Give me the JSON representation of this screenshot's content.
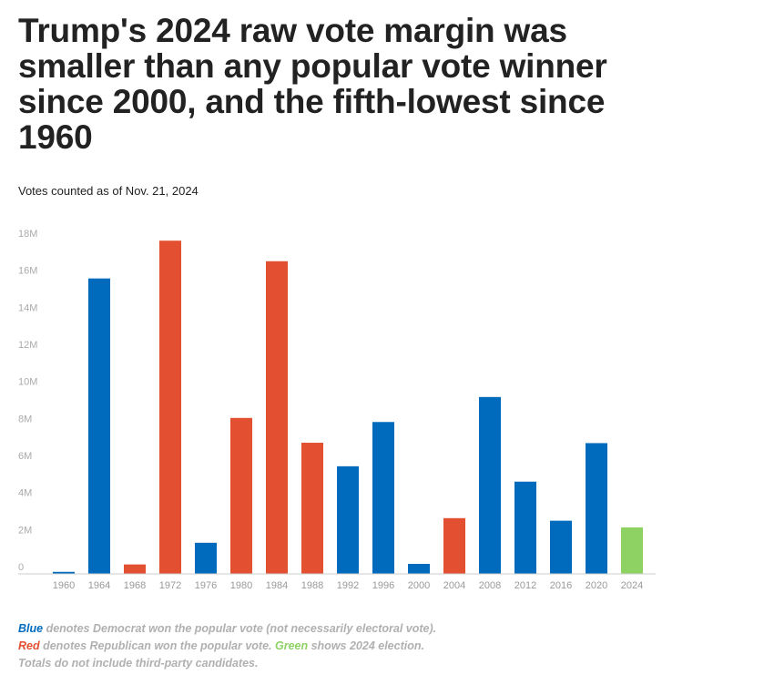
{
  "header": {
    "title": "Trump's 2024 raw vote margin was smaller than any popular vote winner since 2000, and the fifth-lowest since 1960",
    "subtitle": "Votes counted as of Nov. 21, 2024"
  },
  "notes": {
    "line1_key": "Blue",
    "line1_text": " denotes Democrat won the popular vote (not necessarily electoral vote).",
    "line2_key": "Red",
    "line2_text_a": " denotes Republican won the popular vote. ",
    "line2_key2": "Green",
    "line2_text_b": " shows 2024 election.",
    "line3_text": "Totals do not include third-party candidates."
  },
  "colors": {
    "democrat": "#006bbd",
    "republican": "#e34f31",
    "year2024": "#8fd264",
    "axis": "#cccccc",
    "tick_text": "#aaaaaa"
  },
  "chart_data": {
    "type": "bar",
    "title": "Trump's 2024 raw vote margin was smaller than any popular vote winner since 2000, and the fifth-lowest since 1960",
    "subtitle": "Votes counted as of Nov. 21, 2024",
    "xlabel": "",
    "ylabel": "",
    "ylim": [
      0,
      18000000
    ],
    "yticks": [
      0,
      2000000,
      4000000,
      6000000,
      8000000,
      10000000,
      12000000,
      14000000,
      16000000,
      18000000
    ],
    "ytick_labels": [
      "0",
      "2M",
      "4M",
      "6M",
      "8M",
      "10M",
      "12M",
      "14M",
      "16M",
      "18M"
    ],
    "grid": false,
    "legend": "none (color key in footnote)",
    "categories": [
      "1960",
      "1964",
      "1968",
      "1972",
      "1976",
      "1980",
      "1984",
      "1988",
      "1992",
      "1996",
      "2000",
      "2004",
      "2008",
      "2012",
      "2016",
      "2020",
      "2024"
    ],
    "values": [
      110000,
      15950000,
      510000,
      17990000,
      1680000,
      8420000,
      16880000,
      7080000,
      5810000,
      8200000,
      540000,
      3010000,
      9550000,
      4980000,
      2870000,
      7060000,
      2510000
    ],
    "winner_party": [
      "D",
      "D",
      "R",
      "R",
      "D",
      "R",
      "R",
      "R",
      "D",
      "D",
      "D",
      "R",
      "D",
      "D",
      "D",
      "D",
      "2024"
    ]
  }
}
